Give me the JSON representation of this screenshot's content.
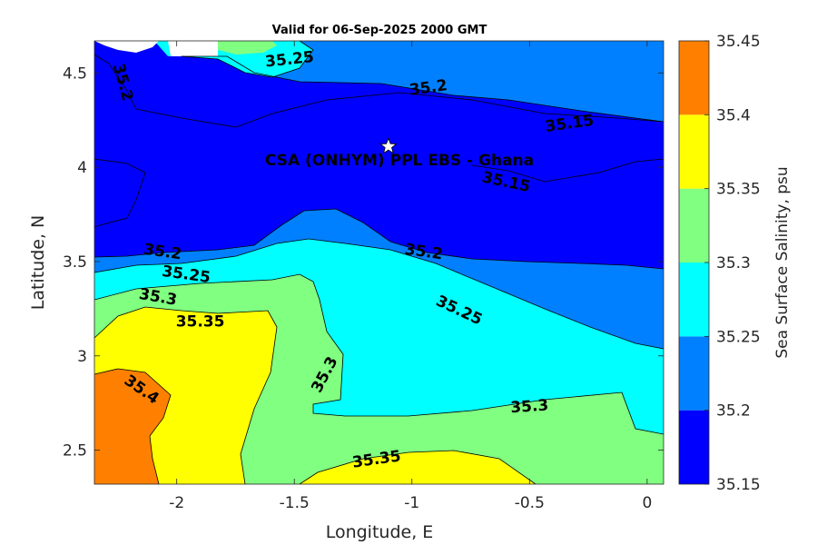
{
  "chart_data": {
    "type": "contour",
    "title": "Valid for 06-Sep-2025 2000 GMT",
    "xlabel": "Longitude, E",
    "ylabel": "Latitude, N",
    "xlim": [
      -2.35,
      0.07
    ],
    "ylim": [
      2.32,
      4.67
    ],
    "x_ticks": [
      -2,
      -1.5,
      -1,
      -0.5,
      0
    ],
    "x_tick_labels": [
      "-2",
      "-1.5",
      "-1",
      "-0.5",
      "0"
    ],
    "y_ticks": [
      2.5,
      3,
      3.5,
      4,
      4.5
    ],
    "y_tick_labels": [
      "2.5",
      "3",
      "3.5",
      "4",
      "4.5"
    ],
    "colorbar": {
      "label": "Sea Surface Salinity, psu",
      "levels": [
        35.15,
        35.2,
        35.25,
        35.3,
        35.35,
        35.4,
        35.45
      ],
      "level_labels": [
        "35.15",
        "35.2",
        "35.25",
        "35.3",
        "35.35",
        "35.4",
        "35.45"
      ],
      "colors": [
        "#0000ff",
        "#0080ff",
        "#00ffff",
        "#80ff80",
        "#ffff00",
        "#ff8000"
      ]
    },
    "contour_labels": [
      {
        "text": "35.25",
        "lon": -1.52,
        "lat": 4.57,
        "angle": -6
      },
      {
        "text": "35.2",
        "lon": -0.93,
        "lat": 4.42,
        "angle": -8
      },
      {
        "text": "35.2",
        "lon": -2.23,
        "lat": 4.45,
        "angle": 75
      },
      {
        "text": "35.15",
        "lon": -0.33,
        "lat": 4.23,
        "angle": -8
      },
      {
        "text": "35.15",
        "lon": -0.6,
        "lat": 3.92,
        "angle": 12
      },
      {
        "text": "35.2",
        "lon": -2.06,
        "lat": 3.55,
        "angle": 8
      },
      {
        "text": "35.2",
        "lon": -0.95,
        "lat": 3.55,
        "angle": 8
      },
      {
        "text": "35.25",
        "lon": -1.96,
        "lat": 3.43,
        "angle": 8
      },
      {
        "text": "35.25",
        "lon": -0.8,
        "lat": 3.24,
        "angle": 25
      },
      {
        "text": "35.3",
        "lon": -2.08,
        "lat": 3.31,
        "angle": 10
      },
      {
        "text": "35.35",
        "lon": -1.9,
        "lat": 3.18,
        "angle": 0
      },
      {
        "text": "35.4",
        "lon": -2.15,
        "lat": 2.82,
        "angle": 35
      },
      {
        "text": "35.3",
        "lon": -1.37,
        "lat": 2.9,
        "angle": -62
      },
      {
        "text": "35.3",
        "lon": -0.5,
        "lat": 2.73,
        "angle": -4
      },
      {
        "text": "35.35",
        "lon": -1.15,
        "lat": 2.45,
        "angle": -8
      }
    ],
    "site": {
      "label": "CSA (ONHYM) PPL EBS  - Ghana",
      "lon": -1.1,
      "lat": 4.11
    }
  }
}
